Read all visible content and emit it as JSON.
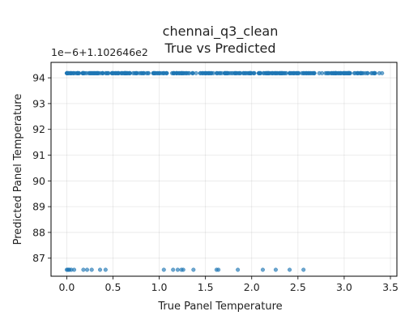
{
  "chart_data": {
    "type": "scatter",
    "title": "chennai_q3_clean",
    "subtitle": "True vs Predicted",
    "xlabel": "True Panel Temperature",
    "ylabel": "Predicted Panel Temperature",
    "y_offset_label": "1e−6+1.102646e2",
    "xlim": [
      -0.17,
      3.57
    ],
    "ylim": [
      86.3,
      94.6
    ],
    "x_ticks": [
      0.0,
      0.5,
      1.0,
      1.5,
      2.0,
      2.5,
      3.0,
      3.5
    ],
    "x_tick_labels": [
      "0.0",
      "0.5",
      "1.0",
      "1.5",
      "2.0",
      "2.5",
      "3.0",
      "3.5"
    ],
    "y_ticks": [
      87,
      88,
      89,
      90,
      91,
      92,
      93,
      94
    ],
    "y_tick_labels": [
      "87",
      "88",
      "89",
      "90",
      "91",
      "92",
      "93",
      "94"
    ],
    "grid": true,
    "marker_color": "#1f77b4",
    "series": [
      {
        "points": [
          {
            "x": 0.0,
            "y": 86.55
          },
          {
            "x": 0.01,
            "y": 86.55
          },
          {
            "x": 0.02,
            "y": 86.55
          },
          {
            "x": 0.03,
            "y": 86.55
          },
          {
            "x": 0.05,
            "y": 86.55
          },
          {
            "x": 0.08,
            "y": 86.55
          },
          {
            "x": 0.18,
            "y": 86.55
          },
          {
            "x": 0.22,
            "y": 86.55
          },
          {
            "x": 0.27,
            "y": 86.55
          },
          {
            "x": 0.36,
            "y": 86.55
          },
          {
            "x": 0.42,
            "y": 86.55
          },
          {
            "x": 1.05,
            "y": 86.55
          },
          {
            "x": 1.15,
            "y": 86.55
          },
          {
            "x": 1.2,
            "y": 86.55
          },
          {
            "x": 1.24,
            "y": 86.55
          },
          {
            "x": 1.26,
            "y": 86.55
          },
          {
            "x": 1.37,
            "y": 86.55
          },
          {
            "x": 1.62,
            "y": 86.55
          },
          {
            "x": 1.64,
            "y": 86.55
          },
          {
            "x": 1.85,
            "y": 86.55
          },
          {
            "x": 2.12,
            "y": 86.55
          },
          {
            "x": 2.26,
            "y": 86.55
          },
          {
            "x": 2.41,
            "y": 86.55
          },
          {
            "x": 2.56,
            "y": 86.55
          }
        ],
        "band": {
          "y": 94.18,
          "x_from": 0.0,
          "x_to": 3.35,
          "count": 380,
          "outliers": [
            3.38,
            3.41
          ]
        }
      }
    ]
  }
}
